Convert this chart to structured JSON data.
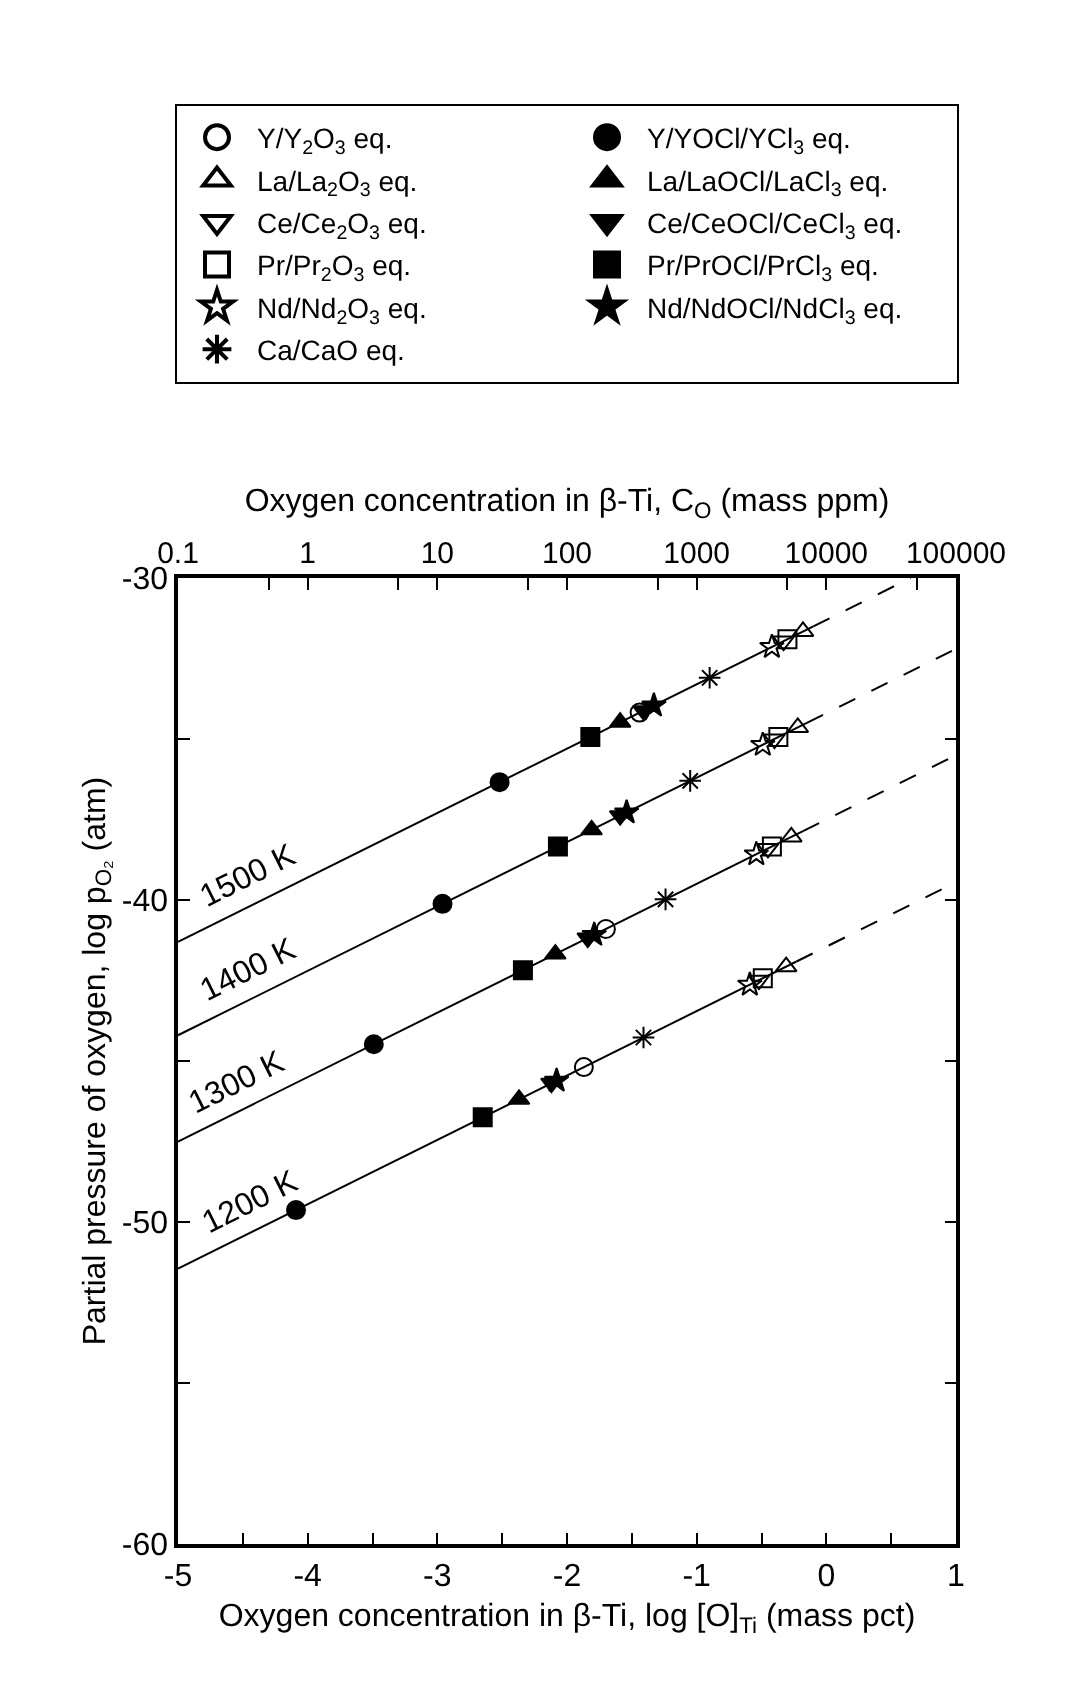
{
  "chart_data": {
    "type": "scatter",
    "xlabel": "Oxygen concentration in β-Ti, log [O]$_{Ti}$ (mass pct)",
    "ylabel": "Partial pressure of oxygen, log p$_{O₂}$ (atm)",
    "x2label": "Oxygen concentration in β-Ti, C$_{O}$ (mass ppm)",
    "xlim": [
      -5,
      1
    ],
    "ylim": [
      -60,
      -30
    ],
    "xticks": [
      -5,
      {
        "value": -4.5,
        "label": null
      },
      -4,
      {
        "value": -3.5,
        "label": null
      },
      -3,
      {
        "value": -2.5,
        "label": null
      },
      -2,
      {
        "value": -1.5,
        "label": null
      },
      -1,
      {
        "value": -0.5,
        "label": null
      },
      0,
      {
        "value": 0.5,
        "label": null
      },
      1
    ],
    "yticks": [
      -60,
      {
        "value": -55,
        "label": null
      },
      -50,
      {
        "value": -45,
        "label": null
      },
      -40,
      {
        "value": -35,
        "label": null
      },
      -30
    ],
    "x2lim": [
      0.1,
      100000
    ],
    "x2ticks": [
      0.1,
      {
        "value": 0.5,
        "label": null
      },
      1,
      {
        "value": 5,
        "label": null
      },
      10,
      {
        "value": 50,
        "label": null
      },
      100,
      {
        "value": 500,
        "label": null
      },
      1000,
      {
        "value": 5000,
        "label": null
      },
      10000,
      {
        "value": 50000,
        "label": null
      },
      100000
    ],
    "legend": "top",
    "log": "x2",
    "annotations": [
      {
        "text": "1500 K",
        "x": -4.37,
        "y": -40.04
      },
      {
        "text": "1400 K",
        "x": -4.37,
        "y": -42.94
      },
      {
        "text": "1300 K",
        "x": -4.45,
        "y": -46.4
      },
      {
        "text": "1200 K",
        "x": -4.35,
        "y": -50.15
      }
    ],
    "series": [
      {
        "type": "line",
        "color": "#000000",
        "line_style": "solid",
        "marker": "none",
        "x": [
          -5,
          -0.1
        ],
        "values": [
          -41.3,
          -31.5
        ]
      },
      {
        "type": "line",
        "color": "#000000",
        "line_style": "dashed",
        "marker": "none",
        "x": [
          -0.1,
          0.65
        ],
        "values": [
          -31.5,
          -30.0
        ]
      },
      {
        "type": "line",
        "color": "#000000",
        "line_style": "solid",
        "marker": "none",
        "x": [
          -5,
          -0.15
        ],
        "values": [
          -44.2,
          -34.5
        ]
      },
      {
        "type": "line",
        "color": "#000000",
        "line_style": "dashed",
        "marker": "none",
        "x": [
          -0.15,
          1
        ],
        "values": [
          -34.5,
          -32.2
        ]
      },
      {
        "type": "line",
        "color": "#000000",
        "line_style": "solid",
        "marker": "none",
        "x": [
          -5,
          -0.18
        ],
        "values": [
          -47.5,
          -37.86
        ]
      },
      {
        "type": "line",
        "color": "#000000",
        "line_style": "dashed",
        "marker": "none",
        "x": [
          -0.18,
          1
        ],
        "values": [
          -37.86,
          -35.5
        ]
      },
      {
        "type": "line",
        "color": "#000000",
        "line_style": "solid",
        "marker": "none",
        "x": [
          -5,
          -0.23
        ],
        "values": [
          -51.45,
          -41.91
        ]
      },
      {
        "type": "line",
        "color": "#000000",
        "line_style": "dashed",
        "marker": "none",
        "x": [
          -0.23,
          1
        ],
        "values": [
          -41.91,
          -39.45
        ]
      },
      {
        "name": "Y/Y$_{2}$O$_{3}$ eq.",
        "color": "#000000",
        "marker": "circle-open",
        "x": [
          -1.44,
          -1.7,
          -1.87
        ],
        "values": [
          -34.18,
          -40.9,
          -45.19
        ]
      },
      {
        "name": "Y/YOCl/YCl$_{3}$ eq.",
        "color": "#000000",
        "marker": "circle",
        "x": [
          -2.52,
          -2.96,
          -3.49,
          -4.09
        ],
        "values": [
          -36.34,
          -40.12,
          -44.48,
          -49.63
        ]
      },
      {
        "name": "La/La$_{2}$O$_{3}$ eq.",
        "color": "#000000",
        "marker": "triangle-up-open",
        "x": [
          -0.18,
          -0.22,
          -0.27,
          -0.31
        ],
        "values": [
          -31.66,
          -34.64,
          -38.04,
          -42.07
        ]
      },
      {
        "name": "La/LaOCl/LaCl$_{3}$ eq.",
        "color": "#000000",
        "marker": "triangle-up",
        "x": [
          -1.59,
          -1.81,
          -2.09,
          -2.37
        ],
        "values": [
          -34.48,
          -37.82,
          -41.68,
          -46.19
        ]
      },
      {
        "name": "Ce/Ce$_{2}$O$_{3}$ eq.",
        "color": "#000000",
        "marker": "triangle-down-open",
        "x": [
          -0.33,
          -0.4,
          -0.45,
          -0.52
        ],
        "values": [
          -31.96,
          -35.0,
          -38.4,
          -42.49
        ]
      },
      {
        "name": "Ce/CeOCl/CeCl$_{3}$ eq.",
        "color": "#000000",
        "marker": "triangle-down",
        "x": [
          -1.41,
          -1.59,
          -1.84,
          -2.12
        ],
        "values": [
          -34.12,
          -37.38,
          -41.18,
          -45.69
        ]
      },
      {
        "name": "Pr/Pr$_{2}$O$_{3}$ eq.",
        "color": "#000000",
        "marker": "square-open",
        "x": [
          -0.3,
          -0.37,
          -0.42,
          -0.49
        ],
        "values": [
          -31.9,
          -34.94,
          -38.34,
          -42.43
        ]
      },
      {
        "name": "Pr/PrOCl/PrCl$_{3}$ eq.",
        "color": "#000000",
        "marker": "square",
        "x": [
          -1.82,
          -2.07,
          -2.34,
          -2.65
        ],
        "values": [
          -34.94,
          -38.34,
          -42.18,
          -46.75
        ]
      },
      {
        "name": "Nd/Nd$_{2}$O$_{3}$ eq.",
        "color": "#000000",
        "marker": "star-open",
        "x": [
          -0.42,
          -0.49,
          -0.54,
          -0.59
        ],
        "values": [
          -32.14,
          -35.18,
          -38.58,
          -42.63
        ]
      },
      {
        "name": "Nd/NdOCl/NdCl$_{3}$ eq.",
        "color": "#000000",
        "marker": "star",
        "x": [
          -1.33,
          -1.54,
          -1.79,
          -2.08
        ],
        "values": [
          -33.96,
          -37.28,
          -41.08,
          -45.61
        ]
      },
      {
        "name": "Ca/CaO eq.",
        "color": "#000000",
        "marker": "cross",
        "x": [
          -0.9,
          -1.05,
          -1.24,
          -1.41
        ],
        "values": [
          -33.1,
          -36.3,
          -39.98,
          -44.27
        ]
      }
    ]
  }
}
